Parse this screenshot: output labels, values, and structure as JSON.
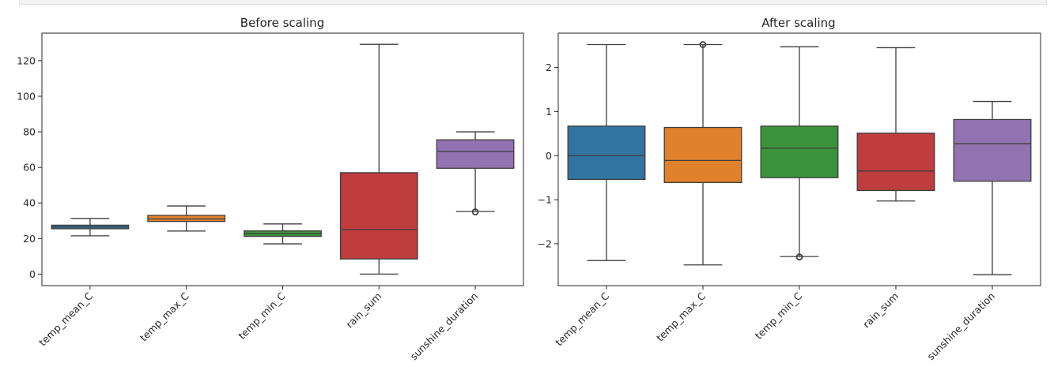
{
  "chart_data": [
    {
      "type": "box",
      "title": "Before scaling",
      "xlabel": "",
      "ylabel": "",
      "categories": [
        "temp_mean_C",
        "temp_max_C",
        "temp_min_C",
        "rain_sum",
        "sunshine_duration"
      ],
      "ylim": [
        -6.5,
        135.5
      ],
      "yticks": [
        0,
        20,
        40,
        60,
        80,
        100,
        120
      ],
      "ytick_labels": [
        "0",
        "20",
        "40",
        "60",
        "80",
        "100",
        "120"
      ],
      "grid": false,
      "boxes": [
        {
          "name": "temp_mean_C",
          "color": "#3274a1",
          "whisker_low": 21.5,
          "q1": 25.5,
          "median": 26.5,
          "q3": 27.5,
          "whisker_high": 31.3,
          "outliers": []
        },
        {
          "name": "temp_max_C",
          "color": "#e1812c",
          "whisker_low": 24.2,
          "q1": 29.6,
          "median": 31.0,
          "q3": 33.0,
          "whisker_high": 38.3,
          "outliers": []
        },
        {
          "name": "temp_min_C",
          "color": "#3a923a",
          "whisker_low": 17.0,
          "q1": 21.2,
          "median": 22.8,
          "q3": 24.3,
          "whisker_high": 28.2,
          "outliers": []
        },
        {
          "name": "rain_sum",
          "color": "#c03d3e",
          "whisker_low": 0.0,
          "q1": 8.5,
          "median": 25.0,
          "q3": 57.0,
          "whisker_high": 129.2,
          "outliers": []
        },
        {
          "name": "sunshine_duration",
          "color": "#9372b2",
          "whisker_low": 35.2,
          "q1": 59.5,
          "median": 69.0,
          "q3": 75.5,
          "whisker_high": 80.0,
          "outliers": [
            35.0
          ]
        }
      ]
    },
    {
      "type": "box",
      "title": "After scaling",
      "xlabel": "",
      "ylabel": "",
      "categories": [
        "temp_mean_C",
        "temp_max_C",
        "temp_min_C",
        "rain_sum",
        "sunshine_duration"
      ],
      "ylim": [
        -2.95,
        2.78
      ],
      "yticks": [
        -2,
        -1,
        0,
        1,
        2
      ],
      "ytick_labels": [
        "−2",
        "−1",
        "0",
        "1",
        "2"
      ],
      "grid": false,
      "boxes": [
        {
          "name": "temp_mean_C",
          "color": "#3274a1",
          "whisker_low": -2.38,
          "q1": -0.54,
          "median": 0.0,
          "q3": 0.67,
          "whisker_high": 2.52,
          "outliers": []
        },
        {
          "name": "temp_max_C",
          "color": "#e1812c",
          "whisker_low": -2.48,
          "q1": -0.61,
          "median": -0.11,
          "q3": 0.64,
          "whisker_high": 2.52,
          "outliers": [
            2.52
          ]
        },
        {
          "name": "temp_min_C",
          "color": "#3a923a",
          "whisker_low": -2.29,
          "q1": -0.5,
          "median": 0.17,
          "q3": 0.67,
          "whisker_high": 2.47,
          "outliers": [
            -2.3
          ]
        },
        {
          "name": "rain_sum",
          "color": "#c03d3e",
          "whisker_low": -1.03,
          "q1": -0.79,
          "median": -0.35,
          "q3": 0.51,
          "whisker_high": 2.45,
          "outliers": []
        },
        {
          "name": "sunshine_duration",
          "color": "#9372b2",
          "whisker_low": -2.7,
          "q1": -0.58,
          "median": 0.27,
          "q3": 0.82,
          "whisker_high": 1.23,
          "outliers": []
        }
      ]
    }
  ]
}
